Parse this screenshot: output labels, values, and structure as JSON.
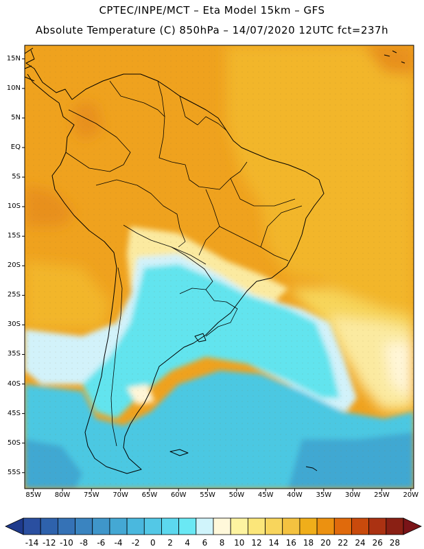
{
  "header": {
    "title_line1": "CPTEC/INPE/MCT –  Eta Model 15km – GFS",
    "title_line2": "Absolute Temperature (C) 850hPa – 14/07/2020 12UTC fct=237h"
  },
  "map": {
    "lat_labels": [
      "15N",
      "10N",
      "5N",
      "EQ",
      "5S",
      "10S",
      "15S",
      "20S",
      "25S",
      "30S",
      "35S",
      "40S",
      "45S",
      "50S",
      "55S"
    ],
    "lon_labels": [
      "85W",
      "80W",
      "75W",
      "70W",
      "65W",
      "60W",
      "55W",
      "50W",
      "45W",
      "40W",
      "35W",
      "30W",
      "25W",
      "20W"
    ],
    "field_colors": {
      "orange_dark": "#e8901a",
      "orange": "#efa21e",
      "gold": "#f2b62c",
      "yellow": "#f7d55a",
      "pale_yellow": "#fbeaa0",
      "cream": "#fff6d8",
      "pale_cyan": "#d2f2fa",
      "cyan": "#62e4ee",
      "light_blue": "#4cc8e2",
      "blue": "#40a8d2"
    }
  },
  "colorbar": {
    "ticks": [
      "-14",
      "-12",
      "-10",
      "-8",
      "-6",
      "-4",
      "-2",
      "0",
      "2",
      "4",
      "6",
      "8",
      "10",
      "12",
      "14",
      "16",
      "18",
      "20",
      "22",
      "24",
      "26",
      "28"
    ],
    "colors": [
      "#2a4fa0",
      "#2e62ac",
      "#3572b6",
      "#3a84c0",
      "#3f96ca",
      "#44a8d4",
      "#4ab8de",
      "#53c8e6",
      "#5cd8ee",
      "#6ae8f4",
      "#d0f4fb",
      "#fff8da",
      "#fdf3a0",
      "#fbe67a",
      "#f8d55c",
      "#f4c240",
      "#f0ae1a",
      "#ec9110",
      "#e06a0c",
      "#c94a0c",
      "#ab3212",
      "#8a2014"
    ],
    "under_color": "#1e3a8c",
    "over_color": "#7a1418"
  }
}
